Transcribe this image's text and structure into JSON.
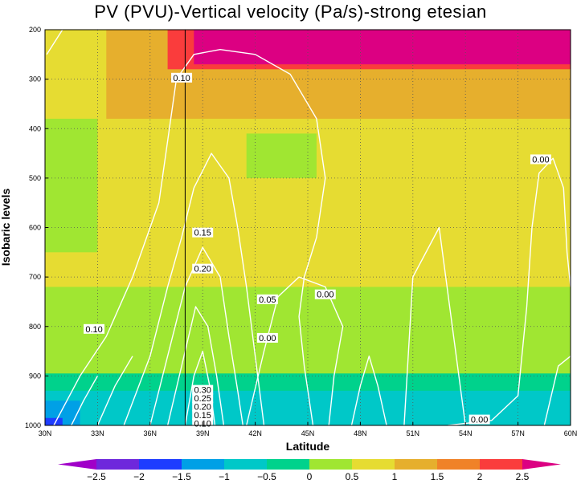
{
  "chart_data": {
    "type": "heatmap",
    "title": "PV (PVU)-Vertical velocity (Pa/s)-strong etesian",
    "xlabel": "Latitude",
    "ylabel": "Isobaric levels",
    "xlim": [
      30,
      60
    ],
    "ylim": [
      1000,
      200
    ],
    "x_ticks": [
      "30N",
      "33N",
      "36N",
      "39N",
      "42N",
      "45N",
      "48N",
      "51N",
      "54N",
      "57N",
      "60N"
    ],
    "y_ticks": [
      "200",
      "300",
      "400",
      "500",
      "600",
      "700",
      "800",
      "900",
      "1000"
    ],
    "grid": true,
    "filled_field": {
      "name": "PV (PVU)",
      "levels": [
        -2.5,
        -2,
        -1.5,
        -1,
        -0.5,
        0,
        0.5,
        1,
        1.5,
        2,
        2.5
      ],
      "colorbar_labels": [
        "-2.5",
        "-2",
        "-1.5",
        "-1",
        "-0.5",
        "0",
        "0.5",
        "1",
        "1.5",
        "2",
        "2.5"
      ],
      "colors": [
        "#a000c8",
        "#6e28dc",
        "#1e3cff",
        "#00a0e6",
        "#00c8c8",
        "#00d28c",
        "#a0e632",
        "#e6dc32",
        "#e6af2d",
        "#f08228",
        "#fa3c3c",
        "#dc0082"
      ],
      "regions": [
        {
          "bin": "1-1.5",
          "lats": [
            30,
            60
          ],
          "levels": [
            1000,
            200
          ]
        },
        {
          "bin": "1.5-2",
          "lats": [
            33.5,
            60
          ],
          "levels": [
            380,
            200
          ]
        },
        {
          "bin": "2-2.5",
          "lats": [
            37,
            60
          ],
          "levels": [
            280,
            200
          ]
        },
        {
          "bin": ">2.5",
          "lats": [
            38.5,
            60
          ],
          "levels": [
            270,
            200
          ]
        },
        {
          "bin": "0.5-1",
          "lats": [
            30,
            33
          ],
          "levels": [
            650,
            380
          ]
        },
        {
          "bin": "0.5-1",
          "lats": [
            41.5,
            45.5
          ],
          "levels": [
            500,
            410
          ]
        },
        {
          "bin": "0.5-1",
          "lats": [
            30,
            60
          ],
          "levels": [
            1000,
            720
          ]
        },
        {
          "bin": "0-0.5",
          "lats": [
            30,
            60
          ],
          "levels": [
            1000,
            895
          ]
        },
        {
          "bin": "-0.5-0",
          "lats": [
            30,
            60
          ],
          "levels": [
            1000,
            930
          ]
        },
        {
          "bin": "-1--0.5",
          "lats": [
            30,
            32
          ],
          "levels": [
            1000,
            950
          ]
        },
        {
          "bin": "-1.5--1",
          "lats": [
            30,
            31
          ],
          "levels": [
            1000,
            985
          ]
        }
      ]
    },
    "contour_field": {
      "name": "Vertical velocity (Pa/s)",
      "labels": [
        {
          "text": "0.10",
          "lat": 37.8,
          "level": 297
        },
        {
          "text": "0.00",
          "lat": 58.3,
          "level": 462
        },
        {
          "text": "0.15",
          "lat": 39.0,
          "level": 610
        },
        {
          "text": "0.20",
          "lat": 39.0,
          "level": 683
        },
        {
          "text": "0.05",
          "lat": 42.7,
          "level": 745
        },
        {
          "text": "0.00",
          "lat": 46.0,
          "level": 735
        },
        {
          "text": "0.10",
          "lat": 32.8,
          "level": 805
        },
        {
          "text": "0.00",
          "lat": 42.7,
          "level": 823
        },
        {
          "text": "0.30",
          "lat": 39.0,
          "level": 928
        },
        {
          "text": "0.25",
          "lat": 39.0,
          "level": 945
        },
        {
          "text": "0.20",
          "lat": 39.0,
          "level": 962
        },
        {
          "text": "0.15",
          "lat": 39.0,
          "level": 979
        },
        {
          "text": "0.10",
          "lat": 39.0,
          "level": 996
        },
        {
          "text": "0.00",
          "lat": 54.8,
          "level": 988
        }
      ]
    },
    "vertical_line": {
      "lat": 38.0
    }
  }
}
